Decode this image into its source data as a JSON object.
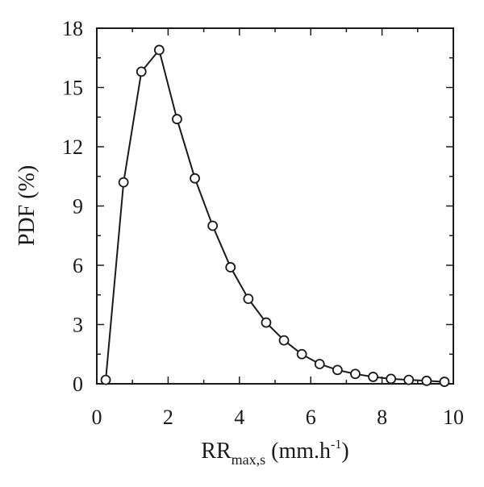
{
  "chart_data": {
    "type": "line",
    "title": "",
    "xlabel": {
      "main": "RR",
      "sub": "max,s",
      "unit_prefix": " (mm.h",
      "unit_sup": "-1",
      "unit_suffix": ")"
    },
    "ylabel": "PDF (%)",
    "xlim": [
      0,
      10
    ],
    "ylim": [
      0,
      18
    ],
    "xticks": [
      0,
      2,
      4,
      6,
      8,
      10
    ],
    "yticks": [
      0,
      3,
      6,
      9,
      12,
      15,
      18
    ],
    "grid": false,
    "legend": "none",
    "series": [
      {
        "marker": "open-circle",
        "color": "#1a1a1a",
        "x": [
          0.25,
          0.75,
          1.25,
          1.75,
          2.25,
          2.75,
          3.25,
          3.75,
          4.25,
          4.75,
          5.25,
          5.75,
          6.25,
          6.75,
          7.25,
          7.75,
          8.25,
          8.75,
          9.25,
          9.75
        ],
        "y": [
          0.2,
          10.2,
          15.8,
          16.9,
          13.4,
          10.4,
          8.0,
          5.9,
          4.3,
          3.1,
          2.2,
          1.5,
          1.0,
          0.7,
          0.5,
          0.35,
          0.25,
          0.2,
          0.15,
          0.1
        ]
      }
    ]
  }
}
